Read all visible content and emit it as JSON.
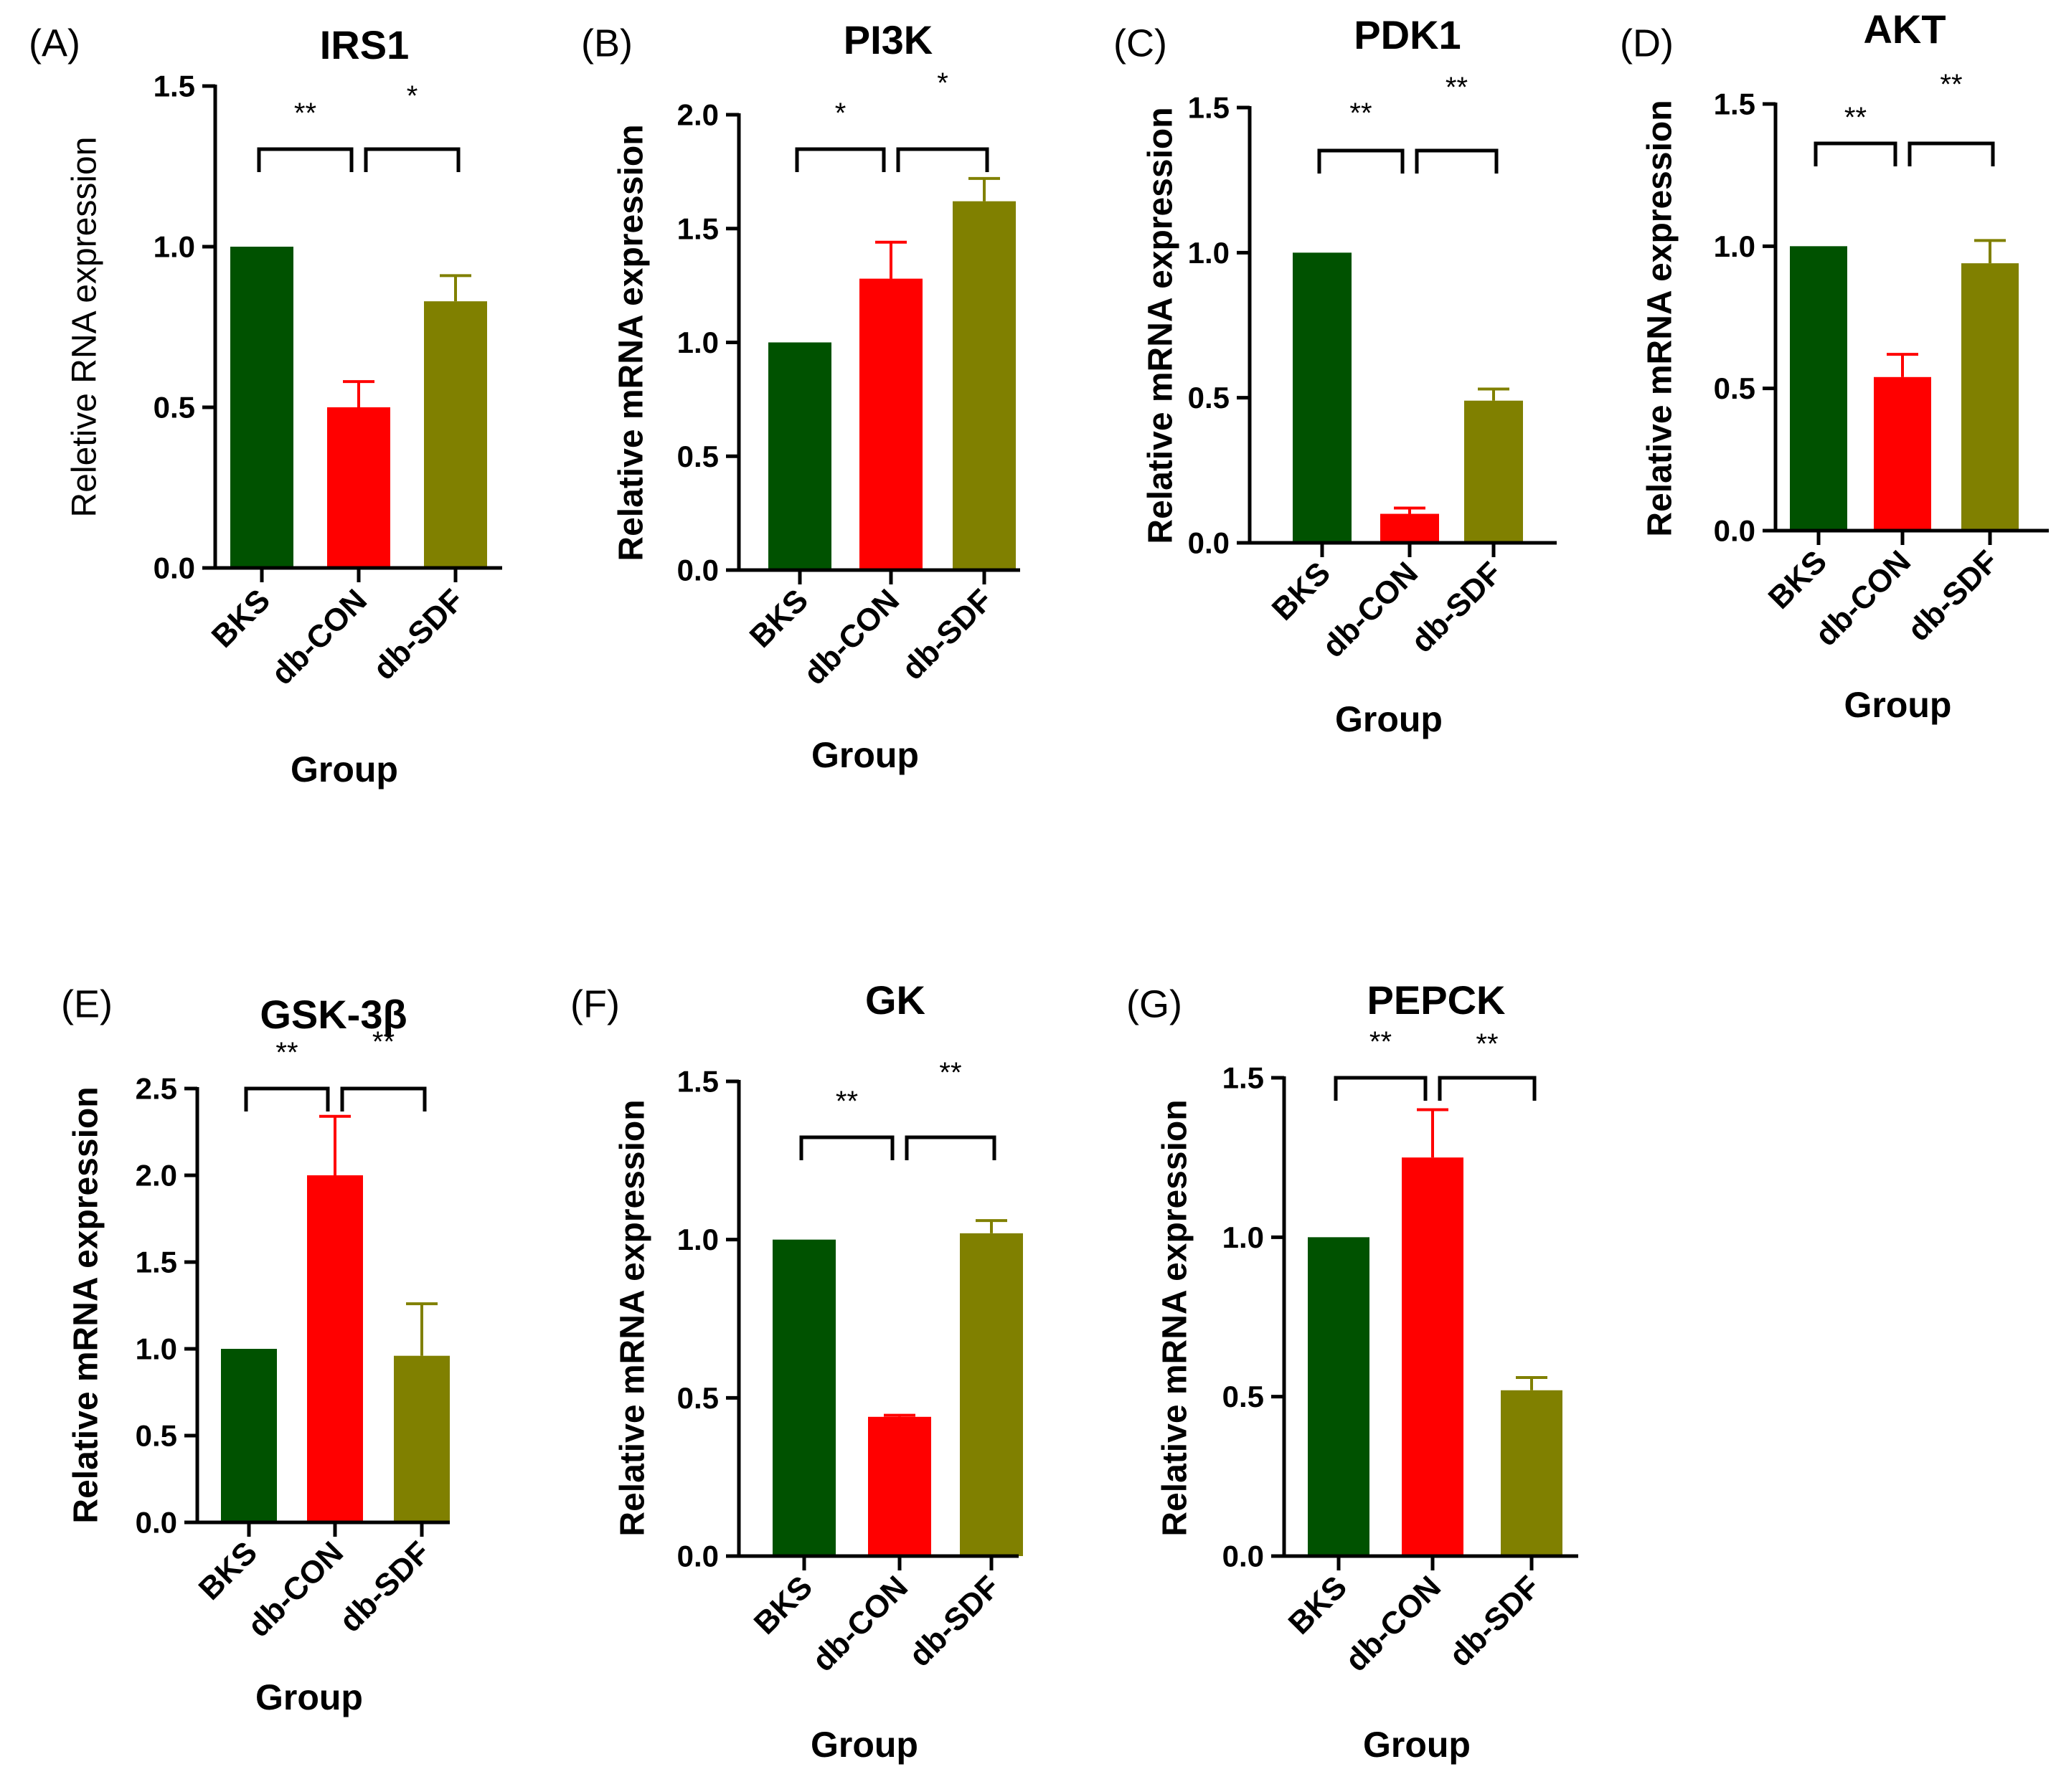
{
  "colors": {
    "BKS": "#005200",
    "db-CON": "#ff0000",
    "db-SDF": "#808000",
    "axis": "#000000"
  },
  "chart_data": [
    {
      "type": "bar",
      "panel_label": "(A)",
      "title": "IRS1",
      "categories": [
        "BKS",
        "db-CON",
        "db-SDF"
      ],
      "values": [
        1.0,
        0.5,
        0.83
      ],
      "errors": [
        0.0,
        0.08,
        0.08
      ],
      "xlabel": "Group",
      "ylabel": "Reletive RNA expression",
      "ylim": [
        0,
        1.5
      ],
      "yticks": [
        "0.0",
        "0.5",
        "1.0",
        "1.5"
      ],
      "significance": [
        {
          "from": 0,
          "to": 1,
          "label": "**"
        },
        {
          "from": 1,
          "to": 2,
          "label": "*"
        }
      ]
    },
    {
      "type": "bar",
      "panel_label": "(B)",
      "title": "PI3K",
      "categories": [
        "BKS",
        "db-CON",
        "db-SDF"
      ],
      "values": [
        1.0,
        1.28,
        1.62
      ],
      "errors": [
        0.0,
        0.16,
        0.1
      ],
      "xlabel": "Group",
      "ylabel": "Relative mRNA expression",
      "ylim": [
        0,
        2.0
      ],
      "yticks": [
        "0.0",
        "0.5",
        "1.0",
        "1.5",
        "2.0"
      ],
      "significance": [
        {
          "from": 0,
          "to": 1,
          "label": "*"
        },
        {
          "from": 1,
          "to": 2,
          "label": "*"
        }
      ]
    },
    {
      "type": "bar",
      "panel_label": "(C)",
      "title": "PDK1",
      "categories": [
        "BKS",
        "db-CON",
        "db-SDF"
      ],
      "values": [
        1.0,
        0.1,
        0.49
      ],
      "errors": [
        0.0,
        0.02,
        0.04
      ],
      "xlabel": "Group",
      "ylabel": "Relative mRNA expression",
      "ylim": [
        0,
        1.5
      ],
      "yticks": [
        "0.0",
        "0.5",
        "1.0",
        "1.5"
      ],
      "significance": [
        {
          "from": 0,
          "to": 1,
          "label": "**"
        },
        {
          "from": 1,
          "to": 2,
          "label": "**"
        }
      ]
    },
    {
      "type": "bar",
      "panel_label": "(D)",
      "title": "AKT",
      "categories": [
        "BKS",
        "db-CON",
        "db-SDF"
      ],
      "values": [
        1.0,
        0.54,
        0.94
      ],
      "errors": [
        0.0,
        0.08,
        0.08
      ],
      "xlabel": "Group",
      "ylabel": "Relative mRNA expression",
      "ylim": [
        0,
        1.5
      ],
      "yticks": [
        "0.0",
        "0.5",
        "1.0",
        "1.5"
      ],
      "significance": [
        {
          "from": 0,
          "to": 1,
          "label": "**"
        },
        {
          "from": 1,
          "to": 2,
          "label": "**"
        }
      ]
    },
    {
      "type": "bar",
      "panel_label": "(E)",
      "title": "GSK-3β",
      "categories": [
        "BKS",
        "db-CON",
        "db-SDF"
      ],
      "values": [
        1.0,
        2.0,
        0.96
      ],
      "errors": [
        0.0,
        0.34,
        0.3
      ],
      "xlabel": "Group",
      "ylabel": "Relative mRNA expression",
      "ylim": [
        0,
        2.5
      ],
      "yticks": [
        "0.0",
        "0.5",
        "1.0",
        "1.5",
        "2.0",
        "2.5"
      ],
      "significance": [
        {
          "from": 0,
          "to": 1,
          "label": "**"
        },
        {
          "from": 1,
          "to": 2,
          "label": "**"
        }
      ]
    },
    {
      "type": "bar",
      "panel_label": "(F)",
      "title": "GK",
      "categories": [
        "BKS",
        "db-CON",
        "db-SDF"
      ],
      "values": [
        1.0,
        0.44,
        1.02
      ],
      "errors": [
        0.0,
        0.005,
        0.04
      ],
      "xlabel": "Group",
      "ylabel": "Relative mRNA expression",
      "ylim": [
        0,
        1.5
      ],
      "yticks": [
        "0.0",
        "0.5",
        "1.0",
        "1.5"
      ],
      "significance": [
        {
          "from": 0,
          "to": 1,
          "label": "**"
        },
        {
          "from": 1,
          "to": 2,
          "label": "**"
        }
      ]
    },
    {
      "type": "bar",
      "panel_label": "(G)",
      "title": "PEPCK",
      "categories": [
        "BKS",
        "db-CON",
        "db-SDF"
      ],
      "values": [
        1.0,
        1.25,
        0.52
      ],
      "errors": [
        0.0,
        0.15,
        0.04
      ],
      "xlabel": "Group",
      "ylabel": "Relative mRNA expression",
      "ylim": [
        0,
        1.5
      ],
      "yticks": [
        "0.0",
        "0.5",
        "1.0",
        "1.5"
      ],
      "significance": [
        {
          "from": 0,
          "to": 1,
          "label": "**"
        },
        {
          "from": 1,
          "to": 2,
          "label": "**"
        }
      ]
    }
  ]
}
